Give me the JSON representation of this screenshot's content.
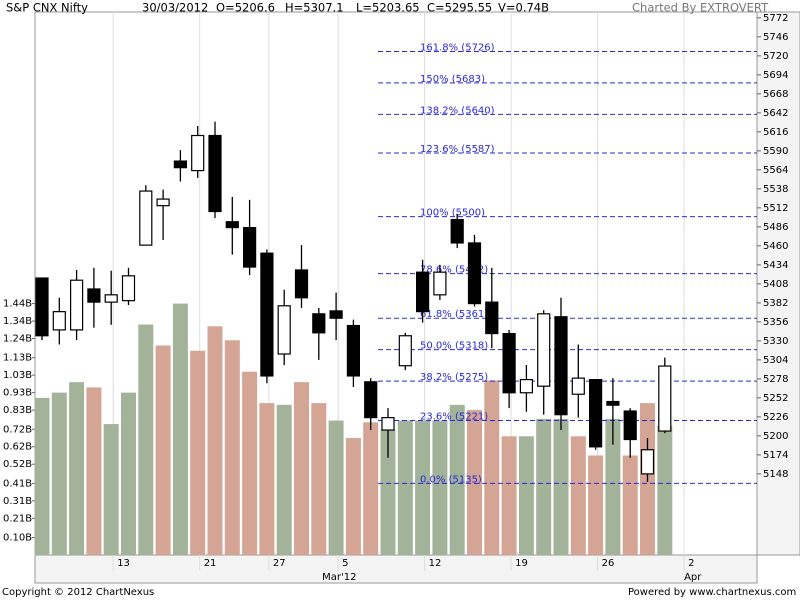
{
  "chart_data": {
    "type": "candlestick",
    "title": "S&P CNX Nifty",
    "header_items": [
      "30/03/2012",
      "O=5206.6",
      "H=5307.1",
      "L=5203.65",
      "C=5295.55",
      "V=0.74B"
    ],
    "credit": "Charted By EXTROVERT",
    "footer_left": "Copyright © 2012 ChartNexus",
    "footer_right": "Powered by www.chartnexus.com",
    "categories": [
      null,
      null,
      null,
      null,
      "13",
      null,
      null,
      null,
      null,
      "21",
      null,
      null,
      null,
      "27",
      null,
      null,
      null,
      "5",
      null,
      null,
      null,
      null,
      "12",
      null,
      null,
      null,
      null,
      "19",
      null,
      null,
      null,
      null,
      "26",
      null,
      null,
      null,
      null,
      "2"
    ],
    "month_labels": [
      {
        "label": "Mar'12",
        "category": 17
      },
      {
        "label": "Apr",
        "category": 37
      }
    ],
    "open": [
      5416,
      5345,
      5345,
      5401,
      5383,
      5385,
      5461,
      5515,
      5576,
      5563,
      5611,
      5493,
      5485,
      5450,
      5312,
      5427,
      5367,
      5371,
      5351,
      5274,
      5208,
      5296,
      5424,
      5393,
      5496,
      5464,
      5383,
      5340,
      5259,
      5268,
      5363,
      5257,
      5277,
      5247,
      5234,
      5148,
      5206.6,
      null
    ],
    "high": [
      5416,
      5389,
      5427,
      5430,
      5426,
      5430,
      5543,
      5537,
      5591,
      5624,
      5630,
      5527,
      5523,
      5455,
      5400,
      5461,
      5375,
      5396,
      5359,
      5279,
      5238,
      5341,
      5441,
      5434,
      5504,
      5475,
      5430,
      5345,
      5297,
      5372,
      5389,
      5325,
      5277,
      5279,
      5238,
      5197,
      5307.1,
      null
    ],
    "low": [
      5331,
      5325,
      5331,
      5348,
      5352,
      5379,
      5461,
      5468,
      5548,
      5553,
      5498,
      5448,
      5420,
      5272,
      5297,
      5375,
      5304,
      5331,
      5267,
      5208,
      5170,
      5290,
      5355,
      5386,
      5457,
      5377,
      5320,
      5238,
      5233,
      5229,
      5208,
      5225,
      5181,
      5188,
      5170,
      5137,
      5203.65,
      null
    ],
    "close": [
      5337,
      5370,
      5413,
      5383,
      5393,
      5419,
      5535,
      5524,
      5567,
      5611,
      5507,
      5485,
      5431,
      5282,
      5378,
      5389,
      5341,
      5361,
      5282,
      5225,
      5225,
      5337,
      5370,
      5424,
      5464,
      5381,
      5340,
      5259,
      5277,
      5367,
      5229,
      5279,
      5185,
      5242,
      5195,
      5181,
      5295.55,
      null
    ],
    "up_color": "#ffffff",
    "down_color": "#000000",
    "volume": [
      0.9,
      0.93,
      0.99,
      0.96,
      0.75,
      0.93,
      1.32,
      1.2,
      1.44,
      1.17,
      1.31,
      1.23,
      1.05,
      0.87,
      0.86,
      0.99,
      0.87,
      0.77,
      0.67,
      0.76,
      0.72,
      0.77,
      0.77,
      0.77,
      0.86,
      0.83,
      1.0,
      0.68,
      0.68,
      0.78,
      0.78,
      0.68,
      0.57,
      0.78,
      0.57,
      0.87,
      0.74,
      null
    ],
    "volume_colors": [
      "#a3b399",
      "#a3b399",
      "#a3b399",
      "#d4a594",
      "#a3b399",
      "#a3b399",
      "#a3b399",
      "#d4a594",
      "#a3b399",
      "#d4a594",
      "#d4a594",
      "#d4a594",
      "#d4a594",
      "#d4a594",
      "#a3b399",
      "#d4a594",
      "#d4a594",
      "#a3b399",
      "#d4a594",
      "#d4a594",
      "#a3b399",
      "#a3b399",
      "#a3b399",
      "#a3b399",
      "#a3b399",
      "#d4a594",
      "#d4a594",
      "#d4a594",
      "#a3b399",
      "#a3b399",
      "#a3b399",
      "#d4a594",
      "#d4a594",
      "#a3b399",
      "#d4a594",
      "#d4a594",
      "#a3b399",
      null
    ],
    "ylim": [
      5037,
      5780
    ],
    "yticks": [
      5148,
      5174,
      5200,
      5226,
      5252,
      5278,
      5304,
      5330,
      5356,
      5382,
      5408,
      5434,
      5460,
      5486,
      5512,
      5538,
      5564,
      5590,
      5616,
      5642,
      5668,
      5694,
      5720,
      5746,
      5772
    ],
    "y2lim": [
      0,
      3.11
    ],
    "y2ticks": [
      {
        "value": 0.1,
        "label": "0.10B"
      },
      {
        "value": 0.21,
        "label": "0.21B"
      },
      {
        "value": 0.31,
        "label": "0.31B"
      },
      {
        "value": 0.41,
        "label": "0.41B"
      },
      {
        "value": 0.52,
        "label": "0.52B"
      },
      {
        "value": 0.62,
        "label": "0.62B"
      },
      {
        "value": 0.72,
        "label": "0.72B"
      },
      {
        "value": 0.83,
        "label": "0.83B"
      },
      {
        "value": 0.93,
        "label": "0.93B"
      },
      {
        "value": 1.03,
        "label": "1.03B"
      },
      {
        "value": 1.13,
        "label": "1.13B"
      },
      {
        "value": 1.24,
        "label": "1.24B"
      },
      {
        "value": 1.34,
        "label": "1.34B"
      },
      {
        "value": 1.44,
        "label": "1.44B"
      }
    ],
    "fib_color": "#2a2ad0",
    "fib_levels": [
      {
        "label": "161.8%  (5726)",
        "value": 5726
      },
      {
        "label": "150%  (5683)",
        "value": 5683
      },
      {
        "label": "138.2%  (5640)",
        "value": 5640
      },
      {
        "label": "123.6%  (5587)",
        "value": 5587
      },
      {
        "label": "100%  (5500)",
        "value": 5500
      },
      {
        "label": "78.6%  (5422)",
        "value": 5422
      },
      {
        "label": "61.8%  (5361)",
        "value": 5361
      },
      {
        "label": "50.0%  (5318)",
        "value": 5318
      },
      {
        "label": "38.2%  (5275)",
        "value": 5275
      },
      {
        "label": "23.6%  (5221)",
        "value": 5221
      },
      {
        "label": "0.0%  (5135)",
        "value": 5135
      }
    ]
  }
}
